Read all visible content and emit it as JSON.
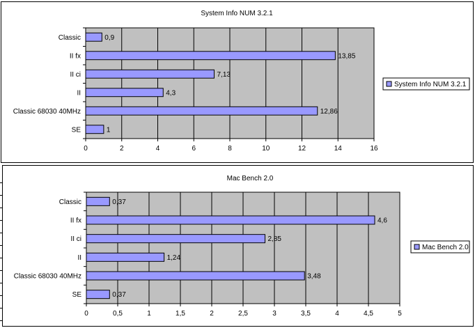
{
  "chart_data": [
    {
      "type": "bar",
      "orientation": "horizontal",
      "title": "System Info NUM 3.2.1",
      "categories": [
        "Classic",
        "II fx",
        "II ci",
        "II",
        "Classic 68030 40MHz",
        "SE"
      ],
      "series": [
        {
          "name": "System Info NUM 3.2.1",
          "values": [
            0.9,
            13.85,
            7.13,
            4.3,
            12.86,
            1
          ],
          "value_labels": [
            "0,9",
            "13,85",
            "7,13",
            "4,3",
            "12,86",
            "1"
          ],
          "color": "#9999ff"
        }
      ],
      "xlim": [
        0,
        16
      ],
      "ticks": [
        0,
        2,
        4,
        6,
        8,
        10,
        12,
        14,
        16
      ],
      "tick_labels": [
        "0",
        "2",
        "4",
        "6",
        "8",
        "10",
        "12",
        "14",
        "16"
      ],
      "plot_background": "#c0c0c0",
      "grid": true,
      "legend_position": "right"
    },
    {
      "type": "bar",
      "orientation": "horizontal",
      "title": "Mac Bench 2.0",
      "categories": [
        "Classic",
        "II fx",
        "II ci",
        "II",
        "Classic 68030 40MHz",
        "SE"
      ],
      "series": [
        {
          "name": "Mac Bench 2.0",
          "values": [
            0.37,
            4.6,
            2.85,
            1.24,
            3.48,
            0.37
          ],
          "value_labels": [
            "0,37",
            "4,6",
            "2,85",
            "1,24",
            "3,48",
            "0,37"
          ],
          "color": "#9999ff"
        }
      ],
      "xlim": [
        0,
        5
      ],
      "ticks": [
        0,
        0.5,
        1,
        1.5,
        2,
        2.5,
        3,
        3.5,
        4,
        4.5,
        5
      ],
      "tick_labels": [
        "0",
        "0,5",
        "1",
        "1,5",
        "2",
        "2,5",
        "3",
        "3,5",
        "4",
        "4,5",
        "5"
      ],
      "plot_background": "#c0c0c0",
      "grid": true,
      "legend_position": "right"
    }
  ]
}
